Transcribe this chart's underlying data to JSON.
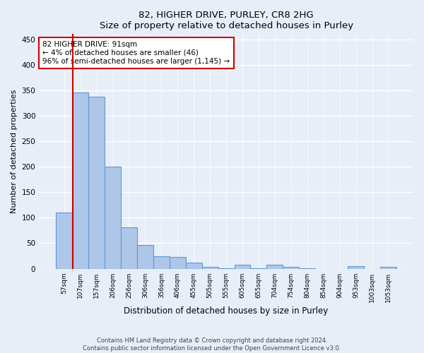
{
  "title_main": "82, HIGHER DRIVE, PURLEY, CR8 2HG",
  "title_sub": "Size of property relative to detached houses in Purley",
  "xlabel": "Distribution of detached houses by size in Purley",
  "ylabel": "Number of detached properties",
  "bar_labels": [
    "57sqm",
    "107sqm",
    "157sqm",
    "206sqm",
    "256sqm",
    "306sqm",
    "356sqm",
    "406sqm",
    "455sqm",
    "505sqm",
    "555sqm",
    "605sqm",
    "655sqm",
    "704sqm",
    "754sqm",
    "804sqm",
    "854sqm",
    "904sqm",
    "953sqm",
    "1003sqm",
    "1053sqm"
  ],
  "bar_values": [
    110,
    345,
    337,
    200,
    81,
    46,
    24,
    23,
    12,
    4,
    1,
    8,
    1,
    8,
    3,
    1,
    0,
    0,
    5,
    0,
    3
  ],
  "bar_color": "#aec6e8",
  "bar_edge_color": "#5b9bd5",
  "annotation_text_line1": "82 HIGHER DRIVE: 91sqm",
  "annotation_text_line2": "← 4% of detached houses are smaller (46)",
  "annotation_text_line3": "96% of semi-detached houses are larger (1,145) →",
  "annotation_box_color": "#ffffff",
  "annotation_box_edge": "#cc0000",
  "red_line_x": 0.55,
  "ylim": [
    0,
    460
  ],
  "yticks": [
    0,
    50,
    100,
    150,
    200,
    250,
    300,
    350,
    400,
    450
  ],
  "footer_line1": "Contains HM Land Registry data © Crown copyright and database right 2024.",
  "footer_line2": "Contains public sector information licensed under the Open Government Licence v3.0.",
  "background_color": "#e8eef7",
  "grid_color": "#ffffff"
}
